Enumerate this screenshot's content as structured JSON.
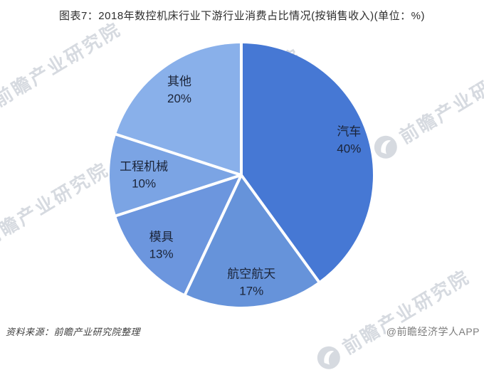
{
  "title": "图表7：2018年数控机床行业下游行业消费占比情况(按销售收入)(单位：%)",
  "chart_data": {
    "type": "pie",
    "title": "图表7：2018年数控机床行业下游行业消费占比情况(按销售收入)(单位：%)",
    "unit": "%",
    "direction": "clockwise",
    "start_angle_deg": 0,
    "separator_color": "#ffffff",
    "label_color": "#1b2438",
    "slices": [
      {
        "label": "汽车",
        "value": 40,
        "color": "#4678d4",
        "label_r": 0.86
      },
      {
        "label": "航空航天",
        "value": 17,
        "color": "#6693da",
        "label_r": 0.82
      },
      {
        "label": "模具",
        "value": 13,
        "color": "#6c96de",
        "label_r": 0.81
      },
      {
        "label": "工程机械",
        "value": 10,
        "color": "#7ba4e4",
        "label_r": 0.74
      },
      {
        "label": "其他",
        "value": 20,
        "color": "#89b0ea",
        "label_r": 0.8
      }
    ]
  },
  "watermark": {
    "text": "前瞻产业研究院",
    "logo": "qianzhan-logo-icon"
  },
  "footer": {
    "source": "资料来源：前瞻产业研究院整理",
    "credit": "@前瞻经济学人APP"
  }
}
